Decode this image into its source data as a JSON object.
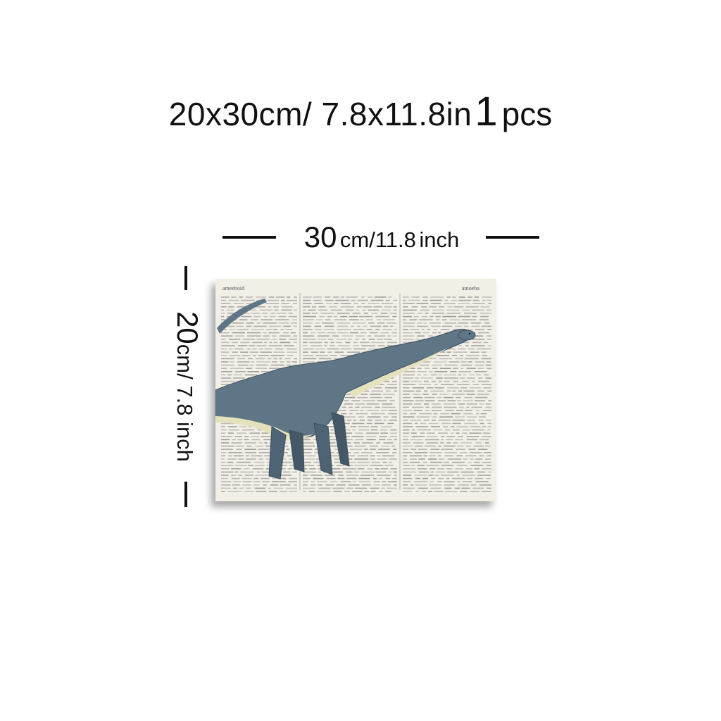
{
  "headline": {
    "size_text": "20x30cm/ 7.8x11.8in",
    "count": "1",
    "count_unit": "pcs"
  },
  "width_dimension": {
    "value": "30",
    "unit_text": "cm/11.8",
    "imperial_unit": "inch"
  },
  "height_dimension": {
    "value": "20",
    "unit_text": "cm/ 7.8 inch"
  },
  "artwork": {
    "subject": "dinosaur-on-dictionary-page",
    "page_header_left": "ameeboid",
    "page_header_right": "amoeba",
    "colors": {
      "paper": "#f1efe6",
      "ink": "#6b6b6b",
      "dino_body": "#5f7687",
      "dino_dark": "#3c4d5c",
      "dino_belly": "#e4e2bc"
    }
  }
}
